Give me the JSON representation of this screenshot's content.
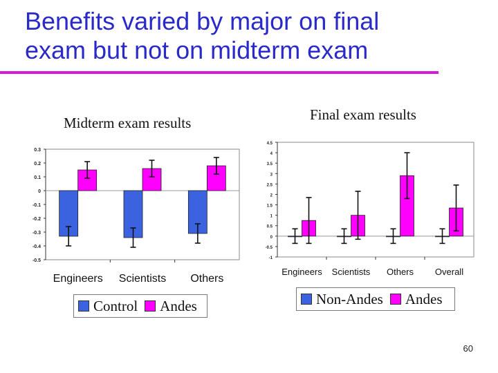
{
  "slide": {
    "title_line1": "Benefits varied by major on final",
    "title_line2": "exam but not on midterm exam",
    "page_number": "60"
  },
  "colors": {
    "title": "#2a2ac8",
    "rule": "#d61ad6",
    "series_a": "#3b63e0",
    "series_b": "#ff00ff"
  },
  "chart_data": [
    {
      "type": "bar",
      "title": "Midterm exam results",
      "categories": [
        "Engineers",
        "Scientists",
        "Others"
      ],
      "series": [
        {
          "name": "Control",
          "values": [
            -0.33,
            -0.34,
            -0.31
          ],
          "errors": [
            0.07,
            0.07,
            0.07
          ]
        },
        {
          "name": "Andes",
          "values": [
            0.15,
            0.16,
            0.18
          ],
          "errors": [
            0.06,
            0.06,
            0.06
          ]
        }
      ],
      "ylim": [
        -0.5,
        0.3
      ],
      "yticks": [
        0.3,
        0.2,
        0.1,
        0,
        -0.1,
        -0.2,
        -0.3,
        -0.4,
        -0.5
      ],
      "ytick_labels": [
        "0.3",
        "0.2",
        "0.1",
        "0",
        "-0.1",
        "-0.2",
        "-0.3",
        "-0.4",
        "-0.5"
      ],
      "grid": false,
      "legend": "bottom"
    },
    {
      "type": "bar",
      "title": "Final exam results",
      "categories": [
        "Engineers",
        "Scientists",
        "Others",
        "Overall"
      ],
      "series": [
        {
          "name": "Non-Andes",
          "values": [
            0,
            0,
            0,
            0
          ],
          "errors": [
            0.35,
            0.35,
            0.35,
            0.35
          ]
        },
        {
          "name": "Andes",
          "values": [
            0.75,
            1.0,
            2.9,
            1.35
          ],
          "errors": [
            1.1,
            1.15,
            1.1,
            1.1
          ]
        }
      ],
      "ylim": [
        -1,
        4.5
      ],
      "yticks": [
        4.5,
        4,
        3.5,
        3,
        2.5,
        2,
        1.5,
        1,
        0.5,
        0,
        -0.5,
        -1
      ],
      "ytick_labels": [
        "4.5",
        "4",
        "3.5",
        "3",
        "2.5",
        "2",
        "1.5",
        "1",
        "0.5",
        "0",
        "-0.5",
        "-1"
      ],
      "grid": false,
      "legend": "bottom"
    }
  ]
}
